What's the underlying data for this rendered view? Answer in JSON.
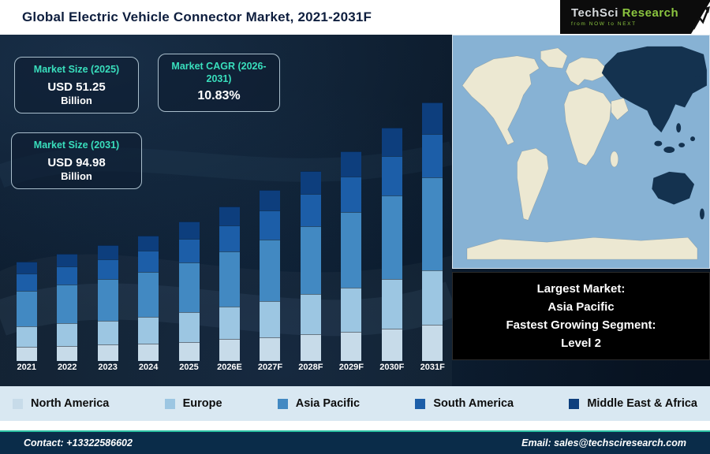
{
  "header": {
    "title": "Global Electric Vehicle Connector Market, 2021-2031F",
    "logo": {
      "brand_primary": "TechSci",
      "brand_secondary": "Research",
      "tagline": "from NOW to NEXT"
    }
  },
  "stats": [
    {
      "label": "Market Size (2025)",
      "value": "USD 51.25",
      "unit": "Billion"
    },
    {
      "label": "Market CAGR (2026-2031)",
      "value": "10.83%",
      "unit": ""
    },
    {
      "label": "Market Size (2031)",
      "value": "USD 94.98",
      "unit": "Billion"
    }
  ],
  "chart_data": {
    "type": "bar",
    "stacked": true,
    "title": "Global Electric Vehicle Connector Market, 2021-2031F",
    "unit": "USD Billion",
    "categories": [
      "2021",
      "2022",
      "2023",
      "2024",
      "2025",
      "2026E",
      "2027F",
      "2028F",
      "2029F",
      "2030F",
      "2031F"
    ],
    "series": [
      {
        "name": "North America",
        "color": "#c7dbe9",
        "values": [
          5.1,
          5.5,
          6.0,
          6.4,
          7.05,
          8.0,
          8.8,
          9.8,
          10.8,
          12.0,
          13.3
        ]
      },
      {
        "name": "Europe",
        "color": "#9cc6e2",
        "values": [
          7.7,
          8.3,
          8.9,
          9.7,
          10.8,
          11.9,
          13.2,
          14.7,
          16.2,
          18.0,
          19.9
        ]
      },
      {
        "name": "Asia Pacific",
        "color": "#4289c2",
        "values": [
          13.1,
          14.2,
          15.3,
          16.6,
          18.5,
          20.4,
          22.7,
          25.1,
          27.8,
          30.9,
          34.28
        ]
      },
      {
        "name": "South America",
        "color": "#1c5ea8",
        "values": [
          6.2,
          6.7,
          7.2,
          7.8,
          8.7,
          9.7,
          10.7,
          11.9,
          13.1,
          14.6,
          16.1
        ]
      },
      {
        "name": "Middle East & Africa",
        "color": "#0d3e7d",
        "values": [
          4.4,
          4.7,
          5.1,
          5.5,
          6.2,
          6.8,
          7.6,
          8.4,
          9.3,
          10.3,
          11.4
        ]
      }
    ],
    "ylim": [
      0,
      100
    ],
    "grid": false,
    "legend_position": "bottom"
  },
  "map_panel": {
    "callout": [
      "Largest Market:",
      "Asia Pacific",
      "Fastest Growing Segment:",
      "Level 2"
    ]
  },
  "footer": {
    "contact": "Contact: +13322586602",
    "email": "Email: sales@techsciresearch.com"
  }
}
